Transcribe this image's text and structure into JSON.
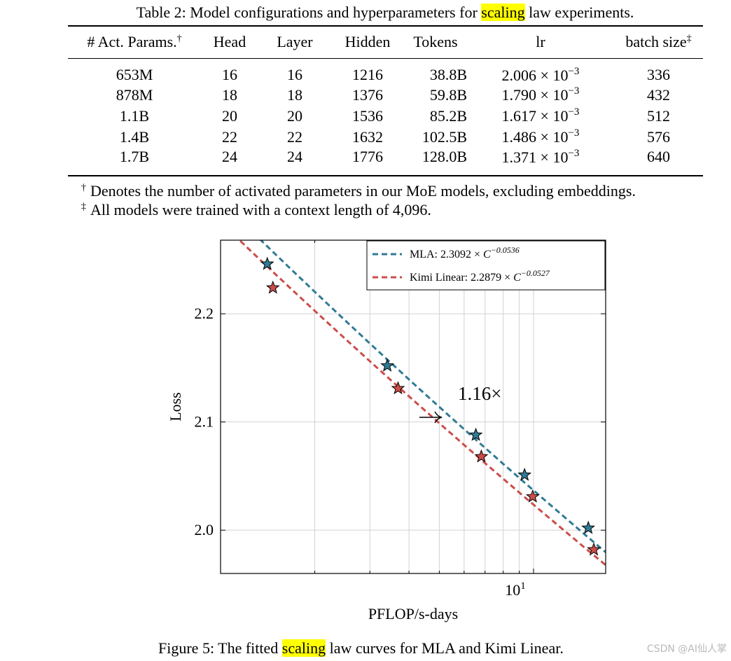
{
  "table": {
    "caption_prefix": "Table 2: Model configurations and hyperparameters for ",
    "caption_highlight": "scaling",
    "caption_suffix": " law experiments.",
    "headers": {
      "params": "# Act. Params.",
      "params_mark": "†",
      "head": "Head",
      "layer": "Layer",
      "hidden": "Hidden",
      "tokens": "Tokens",
      "lr": "lr",
      "batch": "batch size",
      "batch_mark": "‡"
    },
    "rows": [
      {
        "params": "653M",
        "head": "16",
        "layer": "16",
        "hidden": "1216",
        "tokens": "38.8B",
        "lr_mantissa": "2.006 × 10",
        "lr_exponent": "−3",
        "batch": "336"
      },
      {
        "params": "878M",
        "head": "18",
        "layer": "18",
        "hidden": "1376",
        "tokens": "59.8B",
        "lr_mantissa": "1.790 × 10",
        "lr_exponent": "−3",
        "batch": "432"
      },
      {
        "params": "1.1B",
        "head": "20",
        "layer": "20",
        "hidden": "1536",
        "tokens": "85.2B",
        "lr_mantissa": "1.617 × 10",
        "lr_exponent": "−3",
        "batch": "512"
      },
      {
        "params": "1.4B",
        "head": "22",
        "layer": "22",
        "hidden": "1632",
        "tokens": "102.5B",
        "lr_mantissa": "1.486 × 10",
        "lr_exponent": "−3",
        "batch": "576"
      },
      {
        "params": "1.7B",
        "head": "24",
        "layer": "24",
        "hidden": "1776",
        "tokens": "128.0B",
        "lr_mantissa": "1.371 × 10",
        "lr_exponent": "−3",
        "batch": "640"
      }
    ],
    "footnotes": [
      {
        "mark": "†",
        "text": "Denotes the number of activated parameters in our MoE models, excluding embeddings."
      },
      {
        "mark": "‡",
        "text": "All models were trained with a context length of 4,096."
      }
    ]
  },
  "chart_data": {
    "type": "scatter",
    "xscale": "log",
    "xlim": [
      1.0,
      17.0
    ],
    "ylim": [
      1.96,
      2.268
    ],
    "xlabel": "PFLOP/s-days",
    "ylabel": "Loss",
    "yticks": [
      2.0,
      2.1,
      2.2
    ],
    "ytick_labels": [
      "2.0",
      "2.1",
      "2.2"
    ],
    "xtick_base": "10",
    "xtick_exponent": "1",
    "xtick_value": 10,
    "grid": true,
    "legend_position": "top-right",
    "annotation": "1.16×",
    "series": [
      {
        "name": "MLA",
        "legend_prefix": "MLA: 2.3092 × ",
        "legend_var": "C",
        "legend_exponent": "−0.0536",
        "coef": 2.3092,
        "exponent": -0.0536,
        "color": "#2f7b93",
        "x": [
          1.41,
          3.41,
          6.54,
          9.36,
          14.96
        ],
        "y": [
          2.246,
          2.152,
          2.088,
          2.051,
          2.002
        ]
      },
      {
        "name": "Kimi Linear",
        "legend_prefix": "Kimi Linear: 2.2879 × ",
        "legend_var": "C",
        "legend_exponent": "−0.0527",
        "coef": 2.2879,
        "exponent": -0.0527,
        "color": "#cb4d4a",
        "x": [
          1.47,
          3.69,
          6.81,
          9.94,
          15.58
        ],
        "y": [
          2.224,
          2.131,
          2.068,
          2.031,
          1.982
        ]
      }
    ]
  },
  "figure": {
    "caption_prefix": "Figure 5: The fitted ",
    "caption_highlight": "scaling",
    "caption_suffix": " law curves for MLA and Kimi Linear."
  },
  "watermark": "CSDN @AI仙人掌"
}
